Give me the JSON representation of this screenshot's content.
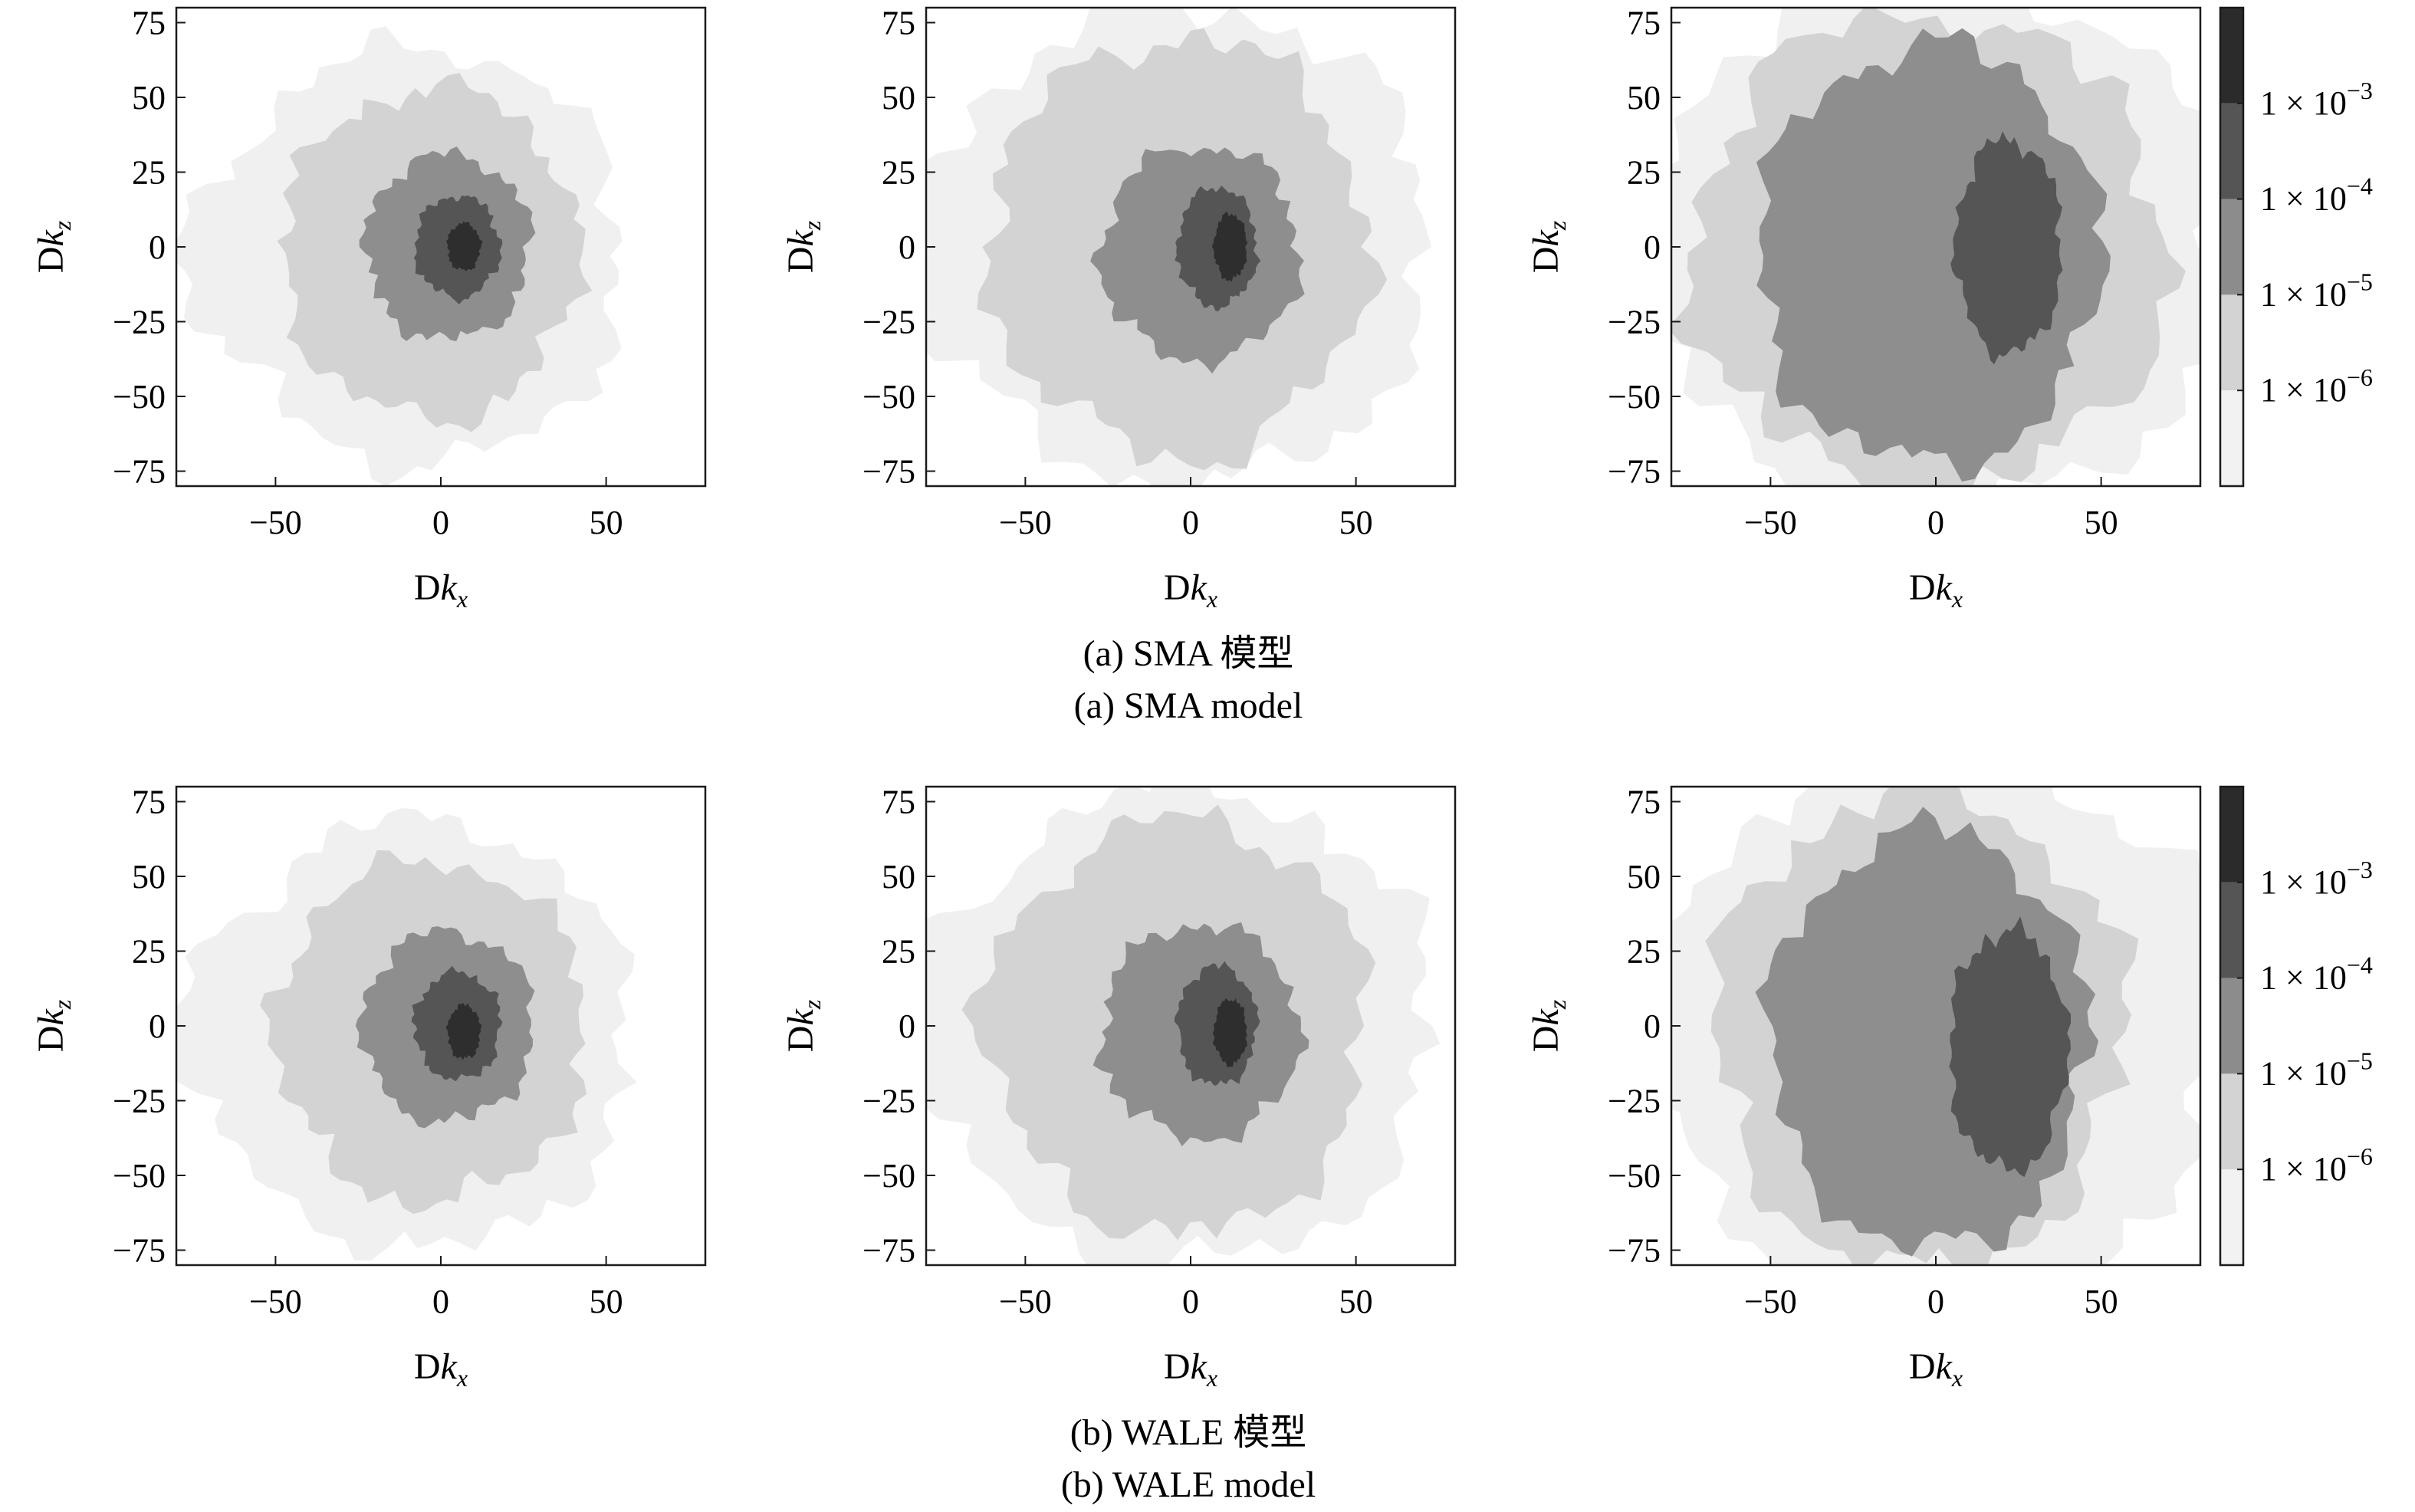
{
  "figure": {
    "row_captions": [
      {
        "zh": "(a) SMA 模型",
        "en": "(a) SMA model"
      },
      {
        "zh": "(b) WALE 模型",
        "en": "(b) WALE model"
      }
    ]
  },
  "chart_data": [
    {
      "type": "heatmap",
      "row": 0,
      "col": 0,
      "xlabel": "Dk",
      "xlabel_sub": "x",
      "ylabel": "Dk",
      "ylabel_sub": "z",
      "xticks": [
        "−50",
        "0",
        "50"
      ],
      "yticks": [
        "75",
        "50",
        "25",
        "0",
        "−25",
        "−50",
        "−75"
      ],
      "xlim": [
        -80,
        80
      ],
      "ylim": [
        -80,
        80
      ],
      "contours": [
        {
          "level": 0,
          "cx": -5,
          "cy": -3,
          "rx": 60,
          "ry": 70,
          "left_ext": 0.55
        },
        {
          "level": 1,
          "cx": -3,
          "cy": -2,
          "rx": 45,
          "ry": 55,
          "left_ext": 0
        },
        {
          "level": 2,
          "cx": 2,
          "cy": 0,
          "rx": 25,
          "ry": 31,
          "left_ext": 0
        },
        {
          "level": 3,
          "cx": 5,
          "cy": 0,
          "rx": 13,
          "ry": 17,
          "left_ext": 0
        },
        {
          "level": 4,
          "cx": 7,
          "cy": 0,
          "rx": 5,
          "ry": 8,
          "left_ext": 0
        }
      ]
    },
    {
      "type": "heatmap",
      "row": 0,
      "col": 1,
      "xlabel": "Dk",
      "xlabel_sub": "x",
      "ylabel": "Dk",
      "ylabel_sub": "z",
      "xticks": [
        "−50",
        "0",
        "50"
      ],
      "yticks": [
        "75",
        "50",
        "25",
        "0",
        "−25",
        "−50",
        "−75"
      ],
      "xlim": [
        -80,
        80
      ],
      "ylim": [
        -80,
        80
      ],
      "contours": [
        {
          "level": 0,
          "cx": 0,
          "cy": 0,
          "rx": 72,
          "ry": 80,
          "left_ext": 0.7
        },
        {
          "level": 1,
          "cx": -2,
          "cy": 0,
          "rx": 55,
          "ry": 70,
          "left_ext": 0.3
        },
        {
          "level": 2,
          "cx": 3,
          "cy": -2,
          "rx": 30,
          "ry": 36,
          "left_ext": 0
        },
        {
          "level": 3,
          "cx": 8,
          "cy": 0,
          "rx": 12,
          "ry": 20,
          "left_ext": 0
        },
        {
          "level": 4,
          "cx": 12,
          "cy": 0,
          "rx": 5,
          "ry": 11,
          "left_ext": 0
        }
      ]
    },
    {
      "type": "heatmap",
      "row": 0,
      "col": 2,
      "xlabel": "Dk",
      "xlabel_sub": "x",
      "ylabel": "Dk",
      "ylabel_sub": "z",
      "xticks": [
        "−50",
        "0",
        "50"
      ],
      "yticks": [
        "75",
        "50",
        "25",
        "0",
        "−25",
        "−50",
        "−75"
      ],
      "xlim": [
        -80,
        80
      ],
      "ylim": [
        -80,
        80
      ],
      "contours": [
        {
          "level": 0,
          "cx": 0,
          "cy": 0,
          "rx": 88,
          "ry": 90,
          "left_ext": 0
        },
        {
          "level": 1,
          "cx": -2,
          "cy": -2,
          "rx": 72,
          "ry": 80,
          "left_ext": 0
        },
        {
          "level": 2,
          "cx": -2,
          "cy": -3,
          "rx": 52,
          "ry": 70,
          "left_ext": 0
        },
        {
          "level": 3,
          "cx": 22,
          "cy": 0,
          "rx": 16,
          "ry": 36,
          "left_ext": 0
        }
      ]
    },
    {
      "type": "heatmap",
      "row": 1,
      "col": 0,
      "xlabel": "Dk",
      "xlabel_sub": "x",
      "ylabel": "Dk",
      "ylabel_sub": "z",
      "xticks": [
        "−50",
        "0",
        "50"
      ],
      "yticks": [
        "75",
        "50",
        "25",
        "0",
        "−25",
        "−50",
        "−75"
      ],
      "xlim": [
        -80,
        80
      ],
      "ylim": [
        -80,
        80
      ],
      "contours": [
        {
          "level": 0,
          "cx": -5,
          "cy": -3,
          "rx": 62,
          "ry": 72,
          "left_ext": 0.55
        },
        {
          "level": 1,
          "cx": -3,
          "cy": -2,
          "rx": 47,
          "ry": 57,
          "left_ext": 0
        },
        {
          "level": 2,
          "cx": 2,
          "cy": 0,
          "rx": 26,
          "ry": 32,
          "left_ext": 0
        },
        {
          "level": 3,
          "cx": 5,
          "cy": 0,
          "rx": 13,
          "ry": 18,
          "left_ext": 0
        },
        {
          "level": 4,
          "cx": 7,
          "cy": -2,
          "rx": 5,
          "ry": 9,
          "left_ext": 0
        }
      ]
    },
    {
      "type": "heatmap",
      "row": 1,
      "col": 1,
      "xlabel": "Dk",
      "xlabel_sub": "x",
      "ylabel": "Dk",
      "ylabel_sub": "z",
      "xticks": [
        "−50",
        "0",
        "50"
      ],
      "yticks": [
        "75",
        "50",
        "25",
        "0",
        "−25",
        "−50",
        "−75"
      ],
      "xlim": [
        -80,
        80
      ],
      "ylim": [
        -80,
        80
      ],
      "contours": [
        {
          "level": 0,
          "cx": 0,
          "cy": 0,
          "rx": 72,
          "ry": 80,
          "left_ext": 0.7
        },
        {
          "level": 1,
          "cx": -2,
          "cy": 0,
          "rx": 55,
          "ry": 70,
          "left_ext": 0.3
        },
        {
          "level": 2,
          "cx": 3,
          "cy": -2,
          "rx": 30,
          "ry": 36,
          "left_ext": 0
        },
        {
          "level": 3,
          "cx": 8,
          "cy": 0,
          "rx": 12,
          "ry": 20,
          "left_ext": 0
        },
        {
          "level": 4,
          "cx": 12,
          "cy": -2,
          "rx": 5,
          "ry": 11,
          "left_ext": 0
        }
      ]
    },
    {
      "type": "heatmap",
      "row": 1,
      "col": 2,
      "xlabel": "Dk",
      "xlabel_sub": "x",
      "ylabel": "Dk",
      "ylabel_sub": "z",
      "xticks": [
        "−50",
        "0",
        "50"
      ],
      "yticks": [
        "75",
        "50",
        "25",
        "0",
        "−25",
        "−50",
        "−75"
      ],
      "xlim": [
        -80,
        80
      ],
      "ylim": [
        -80,
        80
      ],
      "contours": [
        {
          "level": 0,
          "cx": 0,
          "cy": 0,
          "rx": 88,
          "ry": 90,
          "left_ext": 0
        },
        {
          "level": 1,
          "cx": -5,
          "cy": -2,
          "rx": 62,
          "ry": 80,
          "left_ext": 0
        },
        {
          "level": 2,
          "cx": -2,
          "cy": -5,
          "rx": 48,
          "ry": 70,
          "left_ext": 0
        },
        {
          "level": 3,
          "cx": 22,
          "cy": -8,
          "rx": 18,
          "ry": 40,
          "left_ext": 0
        }
      ]
    }
  ],
  "colorbars": [
    {
      "row": 0,
      "labels": [
        "1 × 10",
        "1 × 10",
        "1 × 10",
        "1 × 10"
      ],
      "exponents": [
        "−3",
        "−4",
        "−5",
        "−6"
      ],
      "colors": [
        "#f2f2f2",
        "#d3d3d3",
        "#8c8c8c",
        "#555555",
        "#2b2b2b"
      ]
    },
    {
      "row": 1,
      "labels": [
        "1 × 10",
        "1 × 10",
        "1 × 10",
        "1 × 10"
      ],
      "exponents": [
        "−3",
        "−4",
        "−5",
        "−6"
      ],
      "colors": [
        "#f2f2f2",
        "#d3d3d3",
        "#8c8c8c",
        "#555555",
        "#2b2b2b"
      ]
    }
  ],
  "level_colors": [
    "#f0f0f0",
    "#d3d3d3",
    "#8e8e8e",
    "#555555",
    "#2e2e2e"
  ]
}
